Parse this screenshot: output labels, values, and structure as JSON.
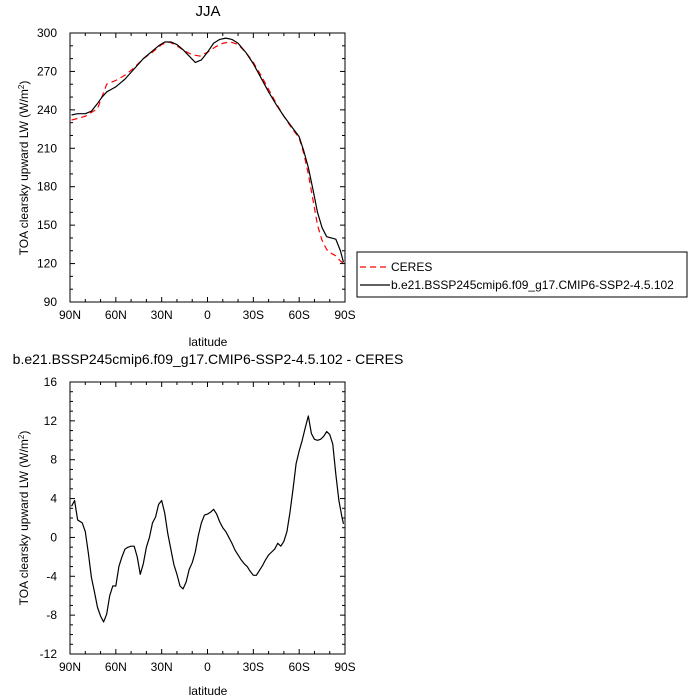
{
  "chart_data": [
    {
      "type": "line",
      "title": "JJA",
      "xlabel": "latitude",
      "ylabel": "TOA clearsky upward LW (W/m²)",
      "ylabel_main": "TOA clearsky upward LW (W/m",
      "ylabel_sup": "2",
      "ylabel_end": ")",
      "xlim": [
        90,
        -90
      ],
      "ylim": [
        90,
        300
      ],
      "x_ticks": [
        90,
        60,
        30,
        0,
        -30,
        -60,
        -90
      ],
      "x_tick_labels": [
        "90N",
        "60N",
        "30N",
        "0",
        "30S",
        "60S",
        "90S"
      ],
      "y_ticks": [
        90,
        120,
        150,
        180,
        210,
        240,
        270,
        300
      ],
      "y_tick_labels": [
        "90",
        "120",
        "150",
        "180",
        "210",
        "240",
        "270",
        "300"
      ],
      "grid": false,
      "legend_position": "right",
      "series": [
        {
          "name": "CERES",
          "color": "#ff0000",
          "dash": "dashed",
          "x": [
            89,
            80,
            72,
            66,
            60,
            54,
            48,
            42,
            36,
            30,
            25,
            20,
            15,
            10,
            5,
            0,
            -5,
            -10,
            -15,
            -20,
            -25,
            -30,
            -35,
            -40,
            -45,
            -50,
            -55,
            -60,
            -63,
            -66,
            -69,
            -72,
            -75,
            -78,
            -81,
            -84,
            -87,
            -89
          ],
          "y": [
            232,
            235,
            241,
            260,
            263,
            267,
            273,
            280,
            285,
            291,
            293,
            290,
            286,
            283,
            282,
            285,
            289,
            292,
            293,
            291,
            285,
            277,
            267,
            256,
            245,
            235,
            226,
            218,
            206,
            190,
            170,
            150,
            138,
            131,
            128,
            126,
            122,
            120
          ]
        },
        {
          "name": "b.e21.BSSP245cmip6.f09_g17.CMIP6-SSP2-4.5.102",
          "color": "#000000",
          "dash": "solid",
          "x": [
            89,
            85,
            80,
            76,
            72,
            69,
            66,
            63,
            60,
            57,
            54,
            48,
            42,
            36,
            32,
            28,
            24,
            20,
            16,
            12,
            8,
            4,
            0,
            -4,
            -8,
            -12,
            -16,
            -20,
            -25,
            -30,
            -35,
            -40,
            -45,
            -50,
            -55,
            -60,
            -63,
            -66,
            -69,
            -72,
            -75,
            -78,
            -81,
            -84,
            -87,
            -89
          ],
          "y": [
            236,
            237,
            237,
            239,
            245,
            250,
            254,
            256,
            258,
            261,
            264,
            272,
            280,
            286,
            290,
            293,
            293,
            291,
            287,
            282,
            277,
            279,
            285,
            292,
            295,
            296,
            295,
            292,
            285,
            276,
            265,
            254,
            244,
            235,
            227,
            219,
            208,
            195,
            178,
            160,
            148,
            141,
            140,
            139,
            130,
            121
          ]
        }
      ]
    },
    {
      "type": "line",
      "title": "b.e21.BSSP245cmip6.f09_g17.CMIP6-SSP2-4.5.102 - CERES",
      "xlabel": "latitude",
      "ylabel": "TOA clearsky upward LW (W/m²)",
      "ylabel_main": "TOA clearsky upward LW (W/m",
      "ylabel_sup": "2",
      "ylabel_end": ")",
      "xlim": [
        90,
        -90
      ],
      "ylim": [
        -12,
        16
      ],
      "x_ticks": [
        90,
        60,
        30,
        0,
        -30,
        -60,
        -90
      ],
      "x_tick_labels": [
        "90N",
        "60N",
        "30N",
        "0",
        "30S",
        "60S",
        "90S"
      ],
      "y_ticks": [
        -12,
        -8,
        -4,
        0,
        4,
        8,
        12,
        16
      ],
      "y_tick_labels": [
        "-12",
        "-8",
        "-4",
        "0",
        "4",
        "8",
        "12",
        "16"
      ],
      "grid": false,
      "series": [
        {
          "color": "#000000",
          "dash": "solid",
          "x": [
            89,
            87,
            85,
            82,
            80,
            78,
            76,
            74,
            72,
            70,
            68,
            66,
            64,
            62,
            60,
            58,
            56,
            54,
            52,
            50,
            48,
            46,
            44,
            42,
            40,
            38,
            36,
            34,
            32,
            30,
            28,
            26,
            24,
            22,
            20,
            18,
            16,
            14,
            12,
            10,
            8,
            6,
            4,
            2,
            0,
            -2,
            -4,
            -6,
            -8,
            -10,
            -12,
            -14,
            -16,
            -18,
            -20,
            -22,
            -24,
            -26,
            -28,
            -30,
            -32,
            -34,
            -36,
            -38,
            -40,
            -42,
            -44,
            -46,
            -48,
            -50,
            -52,
            -54,
            -56,
            -58,
            -60,
            -62,
            -64,
            -66,
            -68,
            -70,
            -72,
            -74,
            -76,
            -78,
            -80,
            -82,
            -84,
            -86,
            -88,
            -89
          ],
          "y": [
            3.2,
            3.8,
            1.8,
            1.5,
            0.6,
            -1.6,
            -4.1,
            -5.6,
            -7.2,
            -8.1,
            -8.7,
            -7.9,
            -6.0,
            -5.0,
            -5.0,
            -3.0,
            -2.0,
            -1.2,
            -1.0,
            -0.9,
            -0.9,
            -2.0,
            -3.8,
            -2.7,
            -1.0,
            0.0,
            1.5,
            2.1,
            3.4,
            3.8,
            2.5,
            0.4,
            -1.2,
            -2.8,
            -3.8,
            -5.0,
            -5.3,
            -4.6,
            -3.3,
            -2.6,
            -1.5,
            0.2,
            1.5,
            2.3,
            2.4,
            2.6,
            2.9,
            2.4,
            1.6,
            1.0,
            0.6,
            0.0,
            -0.6,
            -1.3,
            -1.8,
            -2.3,
            -2.7,
            -3.0,
            -3.5,
            -3.9,
            -3.9,
            -3.4,
            -2.9,
            -2.3,
            -1.8,
            -1.5,
            -1.2,
            -0.6,
            -0.9,
            -0.4,
            0.6,
            2.6,
            5.0,
            7.6,
            8.9,
            10.0,
            11.3,
            12.5,
            10.7,
            10.1,
            10.0,
            10.1,
            10.4,
            10.9,
            10.6,
            9.6,
            6.5,
            3.8,
            2.1,
            1.4
          ]
        }
      ]
    }
  ]
}
